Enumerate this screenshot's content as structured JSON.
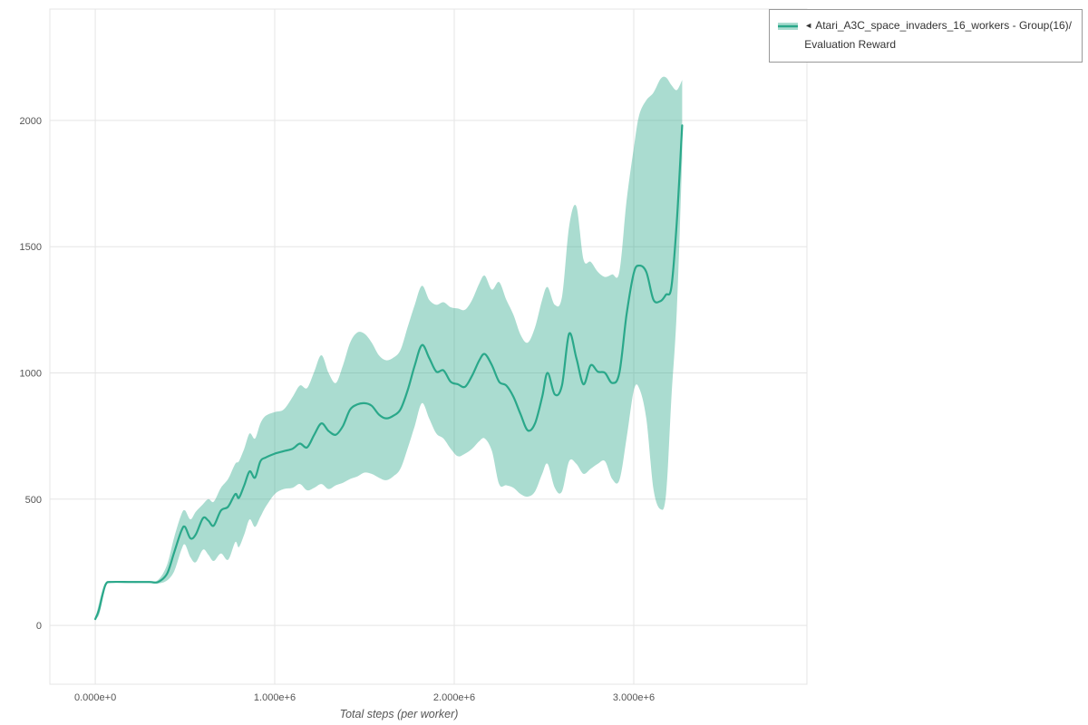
{
  "legend": {
    "collapse_icon": "◄",
    "series": {
      "label_line1": "Atari_A3C_space_invaders_16_workers - Group(16)/",
      "label_line2": "Evaluation Reward"
    }
  },
  "colors": {
    "line": "#2aa88a",
    "band_opacity": "0.4",
    "grid": "#e5e5e5",
    "tick_text": "#555555",
    "axis_title": "#555555"
  },
  "chart_data": {
    "type": "line",
    "title": "",
    "xlabel": "Total steps (per worker)",
    "ylabel": "",
    "legend_position": "top-right-outside",
    "grid": true,
    "x_tick_labels": [
      "0.000e+0",
      "1.000e+6",
      "2.000e+6",
      "3.000e+6"
    ],
    "x_tick_values": [
      0,
      1000000,
      2000000,
      3000000
    ],
    "y_tick_values": [
      0,
      500,
      1000,
      1500,
      2000
    ],
    "x_domain": [
      -253000,
      3965000
    ],
    "y_domain": [
      -233,
      2441
    ],
    "series": [
      {
        "name": "Atari_A3C_space_invaders_16_workers - Group(16)/Evaluation Reward",
        "x": [
          0,
          20000,
          40000,
          60000,
          90000,
          200000,
          300000,
          350000,
          400000,
          440000,
          480000,
          500000,
          530000,
          560000,
          600000,
          630000,
          660000,
          700000,
          740000,
          780000,
          800000,
          830000,
          860000,
          890000,
          920000,
          950000,
          1000000,
          1050000,
          1100000,
          1140000,
          1180000,
          1220000,
          1260000,
          1300000,
          1340000,
          1380000,
          1420000,
          1460000,
          1500000,
          1540000,
          1580000,
          1620000,
          1660000,
          1700000,
          1740000,
          1780000,
          1820000,
          1860000,
          1900000,
          1940000,
          1980000,
          2020000,
          2060000,
          2100000,
          2140000,
          2170000,
          2210000,
          2250000,
          2290000,
          2330000,
          2370000,
          2410000,
          2450000,
          2490000,
          2520000,
          2560000,
          2600000,
          2640000,
          2680000,
          2720000,
          2760000,
          2800000,
          2840000,
          2880000,
          2920000,
          2960000,
          3000000,
          3030000,
          3070000,
          3110000,
          3150000,
          3180000,
          3210000,
          3240000,
          3270000
        ],
        "mean": [
          25,
          60,
          120,
          165,
          172,
          172,
          172,
          172,
          205,
          290,
          375,
          390,
          345,
          360,
          425,
          415,
          395,
          455,
          470,
          520,
          505,
          555,
          610,
          585,
          650,
          665,
          680,
          690,
          700,
          720,
          705,
          755,
          800,
          770,
          755,
          790,
          855,
          875,
          880,
          870,
          835,
          820,
          830,
          855,
          930,
          1030,
          1110,
          1060,
          1005,
          1010,
          965,
          955,
          945,
          990,
          1050,
          1075,
          1030,
          965,
          950,
          905,
          835,
          772,
          800,
          905,
          1000,
          915,
          950,
          1155,
          1060,
          955,
          1030,
          1005,
          1000,
          960,
          1000,
          1230,
          1395,
          1425,
          1400,
          1290,
          1285,
          1310,
          1340,
          1600,
          1980
        ],
        "lower": [
          25,
          40,
          100,
          160,
          170,
          168,
          168,
          166,
          178,
          215,
          300,
          320,
          270,
          250,
          300,
          280,
          255,
          285,
          260,
          330,
          310,
          360,
          420,
          390,
          430,
          470,
          520,
          540,
          545,
          560,
          535,
          545,
          560,
          540,
          555,
          565,
          580,
          590,
          605,
          600,
          585,
          575,
          590,
          620,
          700,
          790,
          880,
          820,
          760,
          740,
          700,
          670,
          680,
          700,
          730,
          740,
          690,
          560,
          555,
          545,
          520,
          510,
          530,
          600,
          640,
          545,
          530,
          650,
          640,
          600,
          620,
          640,
          650,
          580,
          575,
          740,
          930,
          940,
          820,
          540,
          460,
          520,
          900,
          1250,
          1850
        ],
        "upper": [
          25,
          85,
          140,
          172,
          176,
          176,
          176,
          180,
          240,
          350,
          440,
          455,
          420,
          450,
          480,
          500,
          490,
          545,
          580,
          640,
          650,
          700,
          760,
          740,
          800,
          830,
          845,
          855,
          905,
          950,
          940,
          1005,
          1070,
          1000,
          960,
          1030,
          1120,
          1160,
          1155,
          1120,
          1070,
          1050,
          1060,
          1090,
          1180,
          1270,
          1345,
          1290,
          1270,
          1280,
          1260,
          1255,
          1250,
          1290,
          1355,
          1385,
          1330,
          1360,
          1290,
          1230,
          1150,
          1120,
          1180,
          1290,
          1340,
          1270,
          1300,
          1580,
          1660,
          1450,
          1440,
          1400,
          1380,
          1390,
          1400,
          1680,
          1890,
          2020,
          2080,
          2110,
          2165,
          2170,
          2140,
          2120,
          2160
        ]
      }
    ]
  }
}
